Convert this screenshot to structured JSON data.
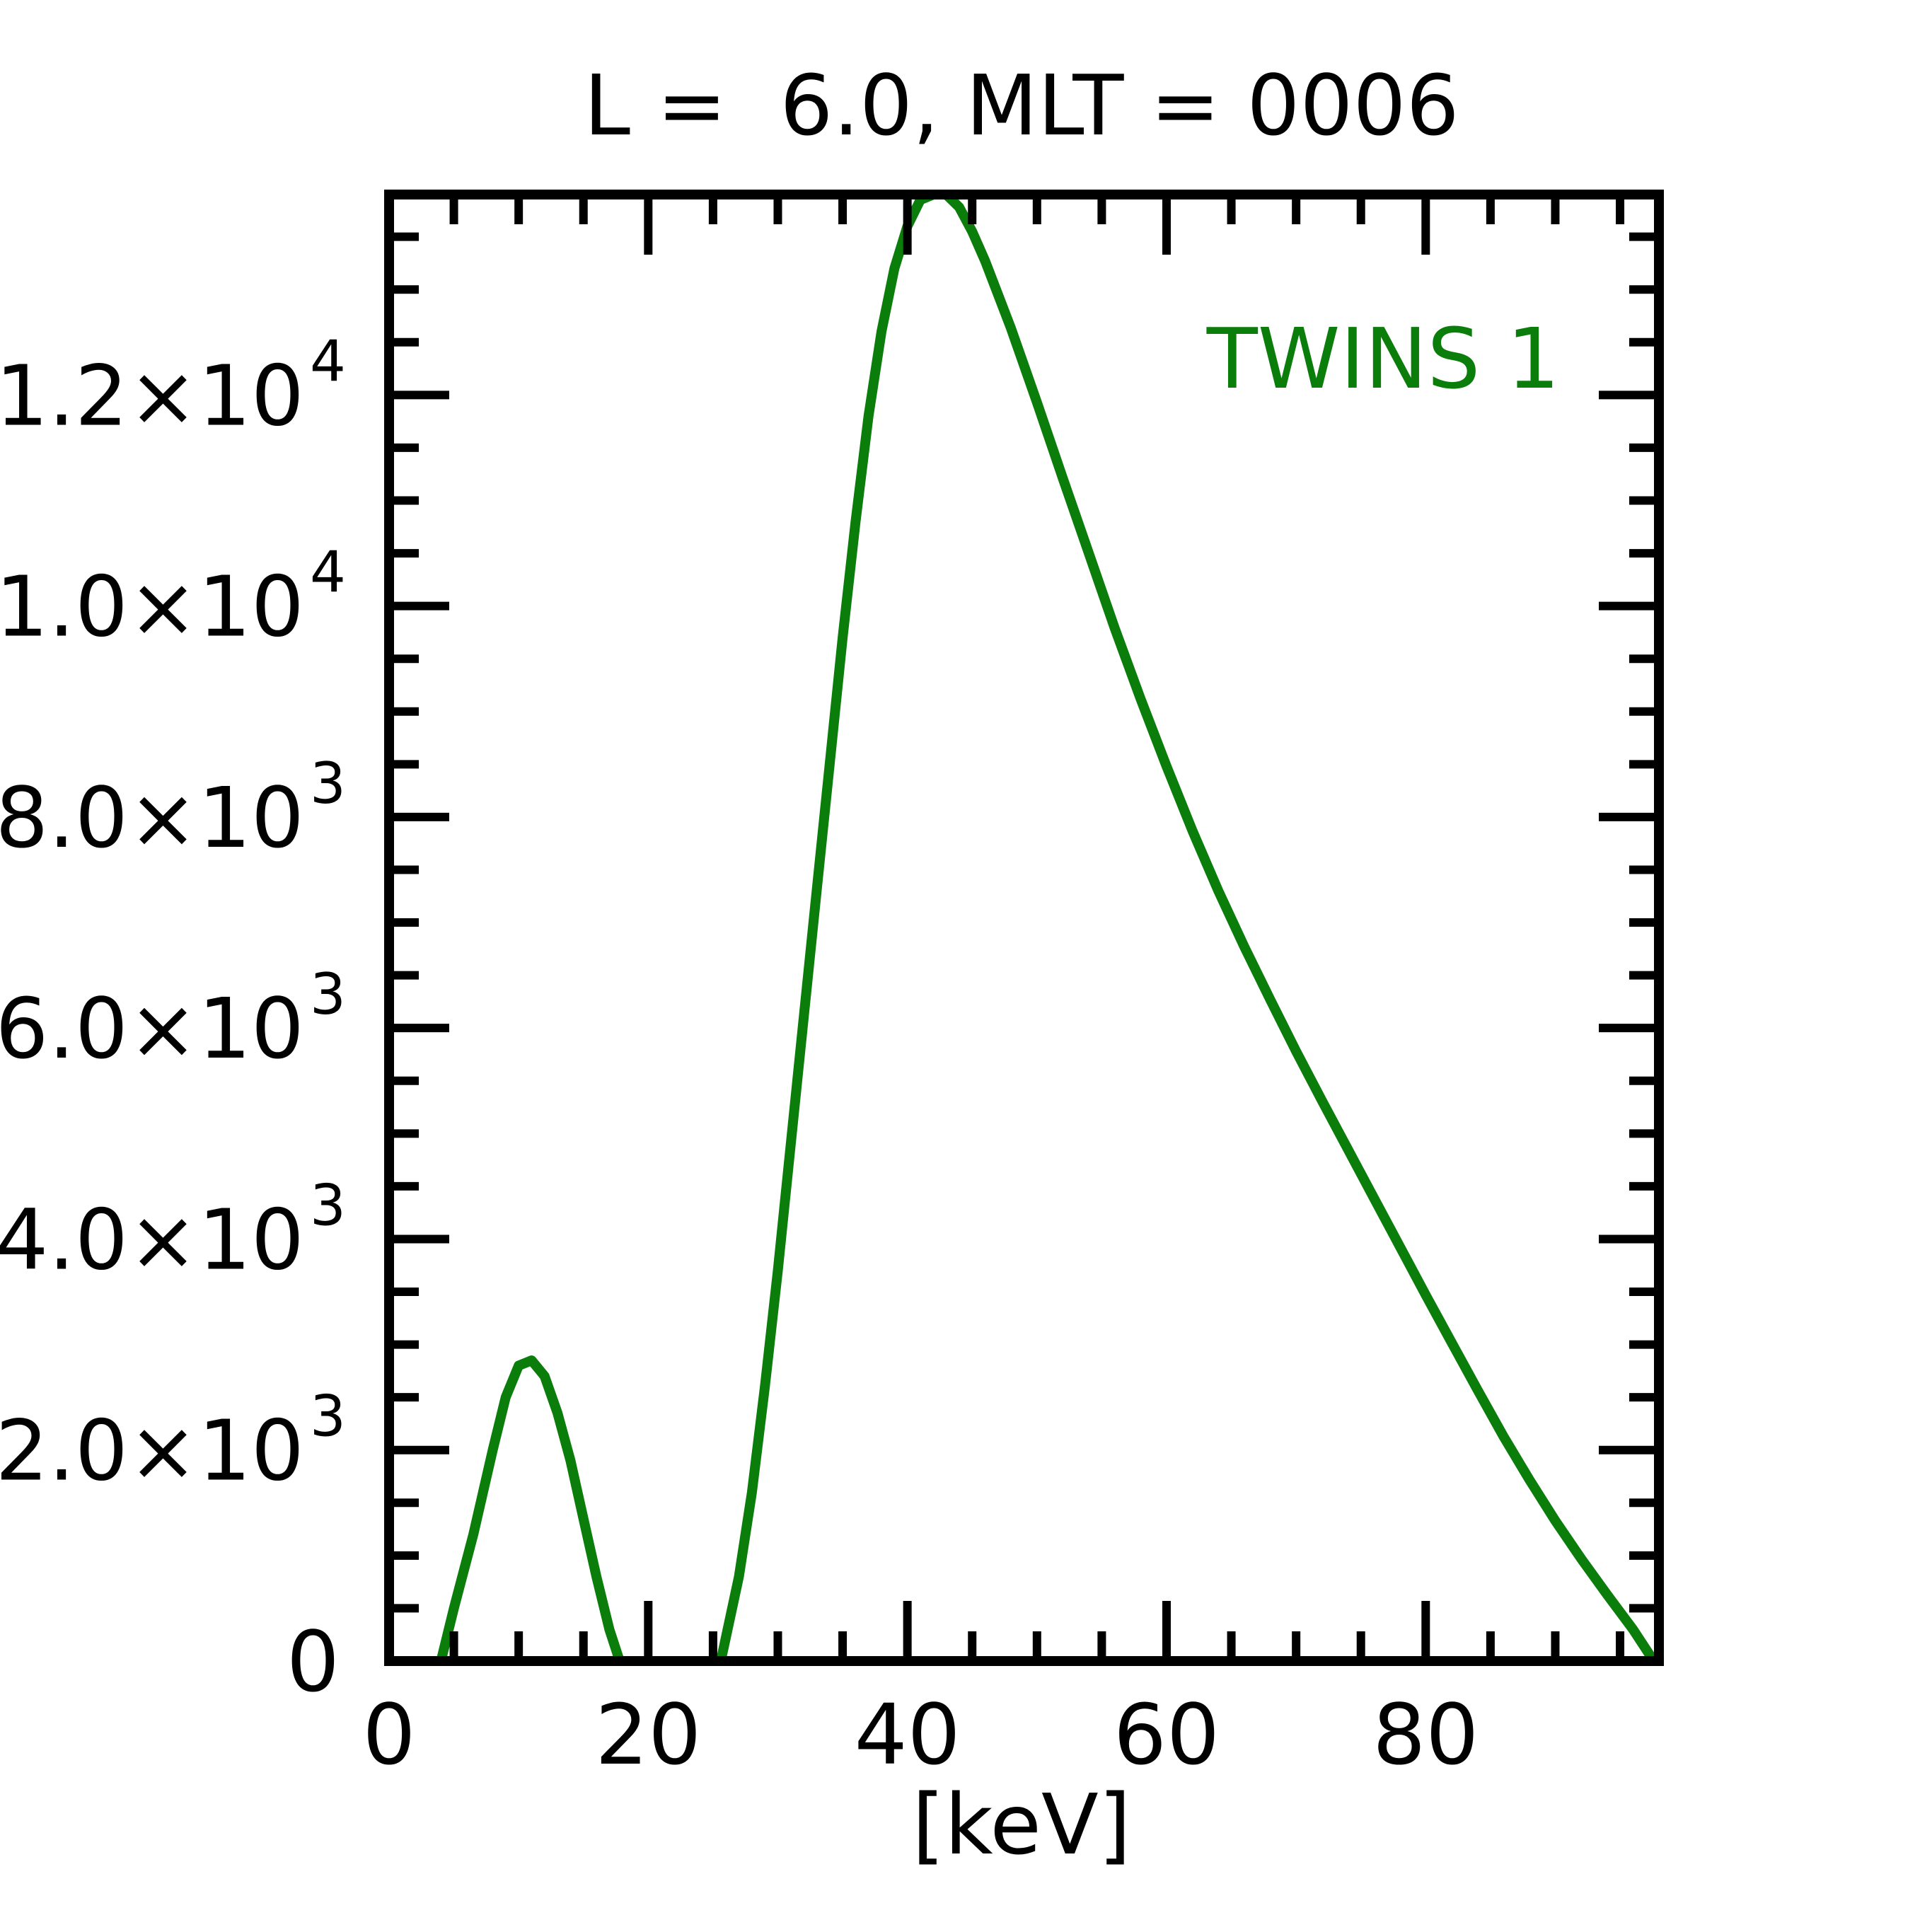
{
  "chart_data": {
    "type": "line",
    "title": "L =  6.0, MLT = 0006",
    "xlabel": "[keV]",
    "ylabel": "",
    "xlim": [
      0,
      98
    ],
    "ylim": [
      0,
      13900
    ],
    "x_ticks": [
      0,
      20,
      40,
      60,
      80
    ],
    "x_tick_labels": [
      "0",
      "20",
      "40",
      "60",
      "80"
    ],
    "y_ticks": [
      {
        "value": 0,
        "mantissa": "0",
        "exponent": ""
      },
      {
        "value": 2000,
        "mantissa": "2.0×10",
        "exponent": "3"
      },
      {
        "value": 4000,
        "mantissa": "4.0×10",
        "exponent": "3"
      },
      {
        "value": 6000,
        "mantissa": "6.0×10",
        "exponent": "3"
      },
      {
        "value": 8000,
        "mantissa": "8.0×10",
        "exponent": "3"
      },
      {
        "value": 10000,
        "mantissa": "1.0×10",
        "exponent": "4"
      },
      {
        "value": 12000,
        "mantissa": "1.2×10",
        "exponent": "4"
      }
    ],
    "grid": false,
    "legend_position": "top-right",
    "series": [
      {
        "name": "TWINS 1",
        "color": "#0a7d0a",
        "segments": [
          [
            [
              4.0,
              0
            ],
            [
              5.0,
              500
            ],
            [
              6.5,
              1200
            ],
            [
              8.0,
              2000
            ],
            [
              9.0,
              2500
            ],
            [
              10.0,
              2800
            ],
            [
              11.0,
              2850
            ],
            [
              12.0,
              2700
            ],
            [
              13.0,
              2350
            ],
            [
              14.0,
              1900
            ],
            [
              15.0,
              1350
            ],
            [
              16.0,
              800
            ],
            [
              17.0,
              300
            ],
            [
              17.8,
              0
            ]
          ],
          [
            [
              25.6,
              0
            ],
            [
              27.0,
              800
            ],
            [
              28.0,
              1600
            ],
            [
              29.0,
              2600
            ],
            [
              30.0,
              3700
            ],
            [
              31.0,
              4900
            ],
            [
              32.0,
              6100
            ],
            [
              33.0,
              7300
            ],
            [
              34.0,
              8500
            ],
            [
              35.0,
              9700
            ],
            [
              36.0,
              10800
            ],
            [
              37.0,
              11800
            ],
            [
              38.0,
              12600
            ],
            [
              39.0,
              13200
            ],
            [
              40.0,
              13600
            ],
            [
              41.0,
              13850
            ],
            [
              42.0,
              13900
            ],
            [
              43.0,
              13900
            ],
            [
              44.0,
              13780
            ],
            [
              45.0,
              13550
            ],
            [
              46.0,
              13270
            ],
            [
              48.0,
              12630
            ],
            [
              50.0,
              11930
            ],
            [
              52.0,
              11210
            ],
            [
              54.0,
              10500
            ],
            [
              56.0,
              9790
            ],
            [
              58.0,
              9120
            ],
            [
              60.0,
              8480
            ],
            [
              62.0,
              7870
            ],
            [
              64.0,
              7300
            ],
            [
              66.0,
              6770
            ],
            [
              68.0,
              6270
            ],
            [
              70.0,
              5780
            ],
            [
              72.0,
              5310
            ],
            [
              74.0,
              4850
            ],
            [
              76.0,
              4390
            ],
            [
              78.0,
              3930
            ],
            [
              80.0,
              3470
            ],
            [
              82.0,
              3020
            ],
            [
              84.0,
              2570
            ],
            [
              86.0,
              2130
            ],
            [
              88.0,
              1720
            ],
            [
              90.0,
              1330
            ],
            [
              92.0,
              970
            ],
            [
              94.0,
              630
            ],
            [
              96.0,
              300
            ],
            [
              97.6,
              0
            ]
          ]
        ]
      }
    ]
  }
}
